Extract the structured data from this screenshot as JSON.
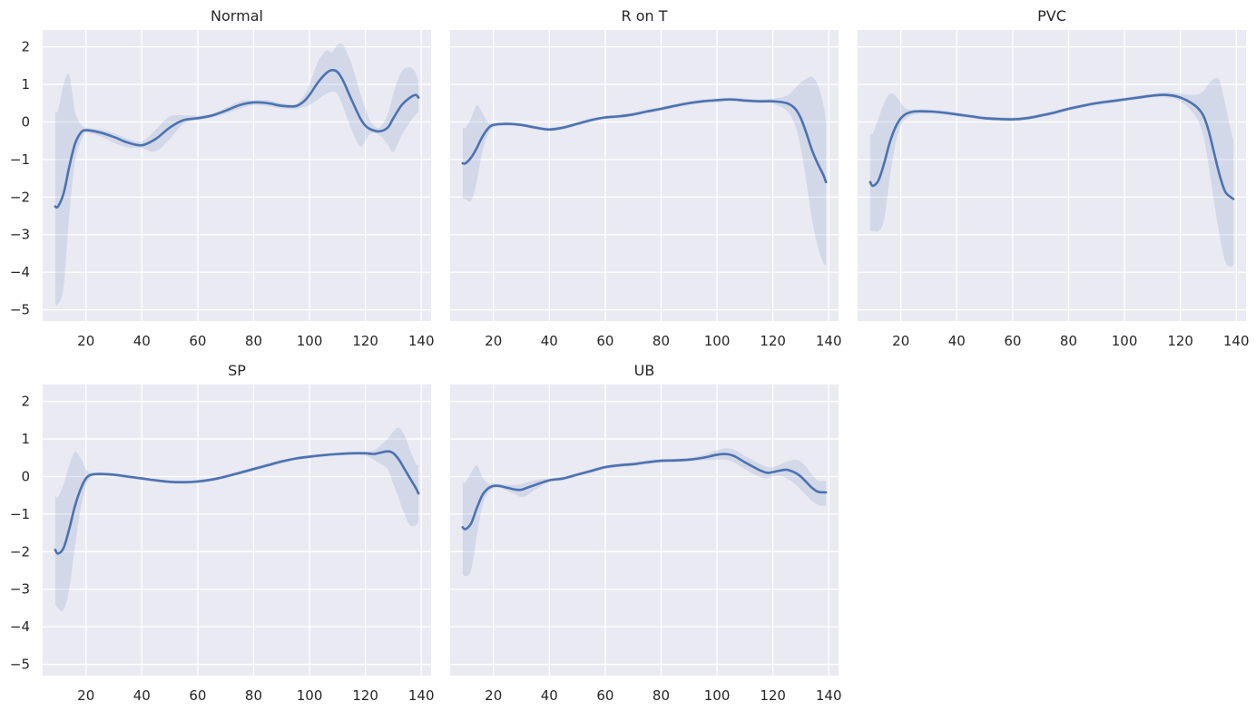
{
  "colors": {
    "panel_bg": "#eaeaf2",
    "grid": "#ffffff",
    "line": "#4c72b0",
    "band": "#4c72b0"
  },
  "chart_data": [
    {
      "type": "line",
      "title": "Normal",
      "x": [
        9,
        10,
        12,
        14,
        16,
        18,
        20,
        25,
        30,
        35,
        40,
        45,
        50,
        55,
        60,
        65,
        70,
        75,
        80,
        85,
        90,
        95,
        98,
        100,
        103,
        106,
        108,
        110,
        112,
        115,
        118,
        120,
        122,
        125,
        128,
        130,
        133,
        136,
        138,
        139
      ],
      "y": [
        -2.25,
        -2.25,
        -1.9,
        -1.2,
        -0.6,
        -0.3,
        -0.22,
        -0.28,
        -0.4,
        -0.55,
        -0.62,
        -0.45,
        -0.15,
        0.05,
        0.1,
        0.17,
        0.3,
        0.45,
        0.52,
        0.5,
        0.43,
        0.42,
        0.55,
        0.72,
        1.05,
        1.3,
        1.38,
        1.33,
        1.1,
        0.6,
        0.12,
        -0.1,
        -0.2,
        -0.25,
        -0.15,
        0.1,
        0.45,
        0.65,
        0.72,
        0.65
      ],
      "lower": [
        -4.85,
        -4.85,
        -4.4,
        -2.5,
        -1.1,
        -0.55,
        -0.3,
        -0.38,
        -0.55,
        -0.68,
        -0.7,
        -0.78,
        -0.45,
        -0.05,
        0.05,
        0.12,
        0.22,
        0.35,
        0.45,
        0.42,
        0.36,
        0.34,
        0.4,
        0.45,
        0.6,
        0.75,
        0.8,
        0.75,
        0.4,
        -0.2,
        -0.65,
        -0.5,
        -0.3,
        -0.35,
        -0.6,
        -0.8,
        -0.35,
        0.0,
        0.2,
        0.25
      ],
      "upper": [
        0.3,
        0.3,
        1.0,
        1.25,
        0.3,
        -0.05,
        -0.15,
        -0.2,
        -0.3,
        -0.45,
        -0.52,
        -0.2,
        0.15,
        0.18,
        0.17,
        0.22,
        0.38,
        0.55,
        0.58,
        0.58,
        0.5,
        0.48,
        0.7,
        1.0,
        1.6,
        1.9,
        1.85,
        2.05,
        2.05,
        1.55,
        0.8,
        0.35,
        0.0,
        -0.15,
        0.2,
        0.75,
        1.35,
        1.45,
        1.3,
        1.05
      ],
      "xlim": [
        4.5,
        143.5
      ],
      "ylim": [
        -5.3,
        2.45
      ],
      "xticks": [
        20,
        40,
        60,
        80,
        100,
        120,
        140
      ],
      "yticks": [
        2,
        1,
        0,
        -1,
        -2,
        -3,
        -4,
        -5
      ],
      "ytick_labels": [
        "2",
        "1",
        "0",
        "−1",
        "−2",
        "−3",
        "−4",
        "−5"
      ],
      "show_yticks": true
    },
    {
      "type": "line",
      "title": "R on T",
      "x": [
        9,
        10,
        12,
        14,
        16,
        18,
        20,
        25,
        30,
        35,
        40,
        45,
        50,
        55,
        60,
        65,
        70,
        75,
        80,
        85,
        90,
        95,
        100,
        105,
        110,
        115,
        120,
        125,
        128,
        130,
        132,
        134,
        136,
        138,
        139
      ],
      "y": [
        -1.1,
        -1.1,
        -0.95,
        -0.7,
        -0.4,
        -0.18,
        -0.08,
        -0.05,
        -0.08,
        -0.15,
        -0.2,
        -0.15,
        -0.05,
        0.05,
        0.12,
        0.15,
        0.2,
        0.28,
        0.35,
        0.43,
        0.5,
        0.55,
        0.58,
        0.6,
        0.57,
        0.55,
        0.55,
        0.5,
        0.35,
        0.1,
        -0.3,
        -0.75,
        -1.1,
        -1.4,
        -1.6
      ],
      "lower": [
        -2.05,
        -2.05,
        -2.1,
        -1.6,
        -0.8,
        -0.35,
        -0.15,
        -0.1,
        -0.12,
        -0.2,
        -0.25,
        -0.2,
        -0.1,
        0.0,
        0.08,
        0.1,
        0.15,
        0.23,
        0.3,
        0.38,
        0.45,
        0.5,
        0.52,
        0.55,
        0.52,
        0.5,
        0.48,
        0.3,
        -0.1,
        -0.7,
        -1.6,
        -2.6,
        -3.3,
        -3.75,
        -3.8
      ],
      "upper": [
        -0.15,
        -0.15,
        0.1,
        0.45,
        0.25,
        0.0,
        -0.02,
        0.0,
        -0.03,
        -0.1,
        -0.15,
        -0.1,
        0.0,
        0.1,
        0.16,
        0.2,
        0.25,
        0.33,
        0.4,
        0.48,
        0.55,
        0.6,
        0.63,
        0.65,
        0.62,
        0.6,
        0.62,
        0.7,
        0.9,
        1.05,
        1.15,
        1.2,
        1.0,
        0.5,
        0.0
      ],
      "xlim": [
        4.5,
        143.5
      ],
      "ylim": [
        -5.3,
        2.45
      ],
      "xticks": [
        20,
        40,
        60,
        80,
        100,
        120,
        140
      ],
      "yticks": [
        2,
        1,
        0,
        -1,
        -2,
        -3,
        -4,
        -5
      ],
      "ytick_labels": [
        "2",
        "1",
        "0",
        "−1",
        "−2",
        "−3",
        "−4",
        "−5"
      ],
      "show_yticks": false
    },
    {
      "type": "line",
      "title": "PVC",
      "x": [
        9,
        10,
        12,
        14,
        16,
        18,
        20,
        22,
        25,
        30,
        35,
        40,
        45,
        50,
        55,
        60,
        65,
        70,
        75,
        80,
        85,
        90,
        95,
        100,
        105,
        110,
        115,
        120,
        125,
        128,
        130,
        132,
        134,
        136,
        138,
        139
      ],
      "y": [
        -1.6,
        -1.7,
        -1.55,
        -1.1,
        -0.55,
        -0.15,
        0.1,
        0.22,
        0.28,
        0.28,
        0.25,
        0.2,
        0.15,
        0.1,
        0.08,
        0.07,
        0.1,
        0.17,
        0.25,
        0.35,
        0.43,
        0.5,
        0.55,
        0.6,
        0.65,
        0.7,
        0.72,
        0.65,
        0.45,
        0.2,
        -0.2,
        -0.8,
        -1.4,
        -1.85,
        -2.0,
        -2.05
      ],
      "lower": [
        -2.9,
        -2.9,
        -2.9,
        -2.6,
        -1.5,
        -0.6,
        -0.1,
        0.1,
        0.2,
        0.22,
        0.2,
        0.15,
        0.1,
        0.05,
        0.03,
        0.02,
        0.05,
        0.12,
        0.2,
        0.3,
        0.38,
        0.45,
        0.5,
        0.55,
        0.6,
        0.65,
        0.65,
        0.55,
        0.2,
        -0.3,
        -1.1,
        -2.1,
        -3.0,
        -3.7,
        -3.85,
        -3.8
      ],
      "upper": [
        -0.3,
        -0.3,
        0.1,
        0.5,
        0.75,
        0.7,
        0.5,
        0.35,
        0.33,
        0.33,
        0.3,
        0.25,
        0.2,
        0.15,
        0.13,
        0.12,
        0.15,
        0.22,
        0.3,
        0.4,
        0.48,
        0.55,
        0.6,
        0.65,
        0.7,
        0.75,
        0.78,
        0.75,
        0.72,
        0.8,
        1.0,
        1.15,
        1.1,
        0.5,
        -0.2,
        -0.5
      ],
      "xlim": [
        4.5,
        143.5
      ],
      "ylim": [
        -5.3,
        2.45
      ],
      "xticks": [
        20,
        40,
        60,
        80,
        100,
        120,
        140
      ],
      "yticks": [
        2,
        1,
        0,
        -1,
        -2,
        -3,
        -4,
        -5
      ],
      "ytick_labels": [
        "2",
        "1",
        "0",
        "−1",
        "−2",
        "−3",
        "−4",
        "−5"
      ],
      "show_yticks": false
    },
    {
      "type": "line",
      "title": "SP",
      "x": [
        9,
        10,
        12,
        14,
        16,
        18,
        20,
        22,
        25,
        30,
        35,
        40,
        45,
        50,
        55,
        60,
        65,
        70,
        75,
        80,
        85,
        90,
        95,
        100,
        105,
        110,
        115,
        120,
        123,
        125,
        128,
        130,
        132,
        134,
        136,
        138,
        139
      ],
      "y": [
        -1.95,
        -2.05,
        -1.9,
        -1.4,
        -0.8,
        -0.35,
        -0.05,
        0.05,
        0.07,
        0.05,
        0.0,
        -0.05,
        -0.1,
        -0.14,
        -0.15,
        -0.13,
        -0.08,
        0.0,
        0.1,
        0.2,
        0.3,
        0.4,
        0.48,
        0.53,
        0.57,
        0.6,
        0.62,
        0.62,
        0.6,
        0.63,
        0.67,
        0.62,
        0.45,
        0.2,
        -0.05,
        -0.3,
        -0.45
      ],
      "lower": [
        -3.4,
        -3.5,
        -3.55,
        -3.0,
        -1.9,
        -0.9,
        -0.25,
        -0.02,
        0.02,
        0.0,
        -0.05,
        -0.1,
        -0.15,
        -0.18,
        -0.2,
        -0.18,
        -0.13,
        -0.05,
        0.05,
        0.15,
        0.25,
        0.35,
        0.43,
        0.48,
        0.52,
        0.55,
        0.57,
        0.55,
        0.45,
        0.35,
        0.2,
        -0.2,
        -0.6,
        -1.0,
        -1.3,
        -1.3,
        -1.2
      ],
      "upper": [
        -0.5,
        -0.55,
        -0.2,
        0.3,
        0.65,
        0.5,
        0.2,
        0.1,
        0.1,
        0.08,
        0.03,
        -0.02,
        -0.07,
        -0.1,
        -0.11,
        -0.09,
        -0.04,
        0.05,
        0.15,
        0.25,
        0.35,
        0.45,
        0.52,
        0.57,
        0.6,
        0.63,
        0.65,
        0.66,
        0.7,
        0.8,
        1.0,
        1.2,
        1.3,
        1.1,
        0.7,
        0.35,
        0.3
      ],
      "xlim": [
        4.5,
        143.5
      ],
      "ylim": [
        -5.3,
        2.45
      ],
      "xticks": [
        20,
        40,
        60,
        80,
        100,
        120,
        140
      ],
      "yticks": [
        2,
        1,
        0,
        -1,
        -2,
        -3,
        -4,
        -5
      ],
      "ytick_labels": [
        "2",
        "1",
        "0",
        "−1",
        "−2",
        "−3",
        "−4",
        "−5"
      ],
      "show_yticks": true
    },
    {
      "type": "line",
      "title": "UB",
      "x": [
        9,
        10,
        12,
        14,
        16,
        18,
        20,
        22,
        25,
        28,
        30,
        32,
        35,
        40,
        45,
        50,
        55,
        60,
        65,
        70,
        75,
        80,
        85,
        90,
        95,
        100,
        103,
        106,
        110,
        115,
        118,
        120,
        122,
        125,
        128,
        130,
        132,
        134,
        136,
        138,
        139
      ],
      "y": [
        -1.35,
        -1.4,
        -1.25,
        -0.85,
        -0.5,
        -0.32,
        -0.25,
        -0.25,
        -0.3,
        -0.35,
        -0.35,
        -0.3,
        -0.22,
        -0.1,
        -0.05,
        0.05,
        0.15,
        0.25,
        0.3,
        0.33,
        0.38,
        0.42,
        0.43,
        0.45,
        0.5,
        0.58,
        0.6,
        0.55,
        0.38,
        0.18,
        0.1,
        0.12,
        0.15,
        0.18,
        0.1,
        0.0,
        -0.15,
        -0.3,
        -0.4,
        -0.42,
        -0.42
      ],
      "lower": [
        -2.6,
        -2.65,
        -2.5,
        -1.6,
        -0.8,
        -0.45,
        -0.32,
        -0.3,
        -0.38,
        -0.48,
        -0.55,
        -0.5,
        -0.35,
        -0.15,
        -0.1,
        0.0,
        0.1,
        0.2,
        0.25,
        0.28,
        0.33,
        0.37,
        0.38,
        0.4,
        0.43,
        0.45,
        0.45,
        0.38,
        0.2,
        0.0,
        -0.05,
        0.0,
        0.02,
        -0.05,
        -0.2,
        -0.35,
        -0.5,
        -0.65,
        -0.75,
        -0.78,
        -0.78
      ],
      "upper": [
        -0.15,
        -0.15,
        0.1,
        0.3,
        0.0,
        -0.18,
        -0.18,
        -0.2,
        -0.22,
        -0.22,
        -0.2,
        -0.15,
        -0.1,
        -0.05,
        0.0,
        0.1,
        0.2,
        0.3,
        0.35,
        0.38,
        0.43,
        0.47,
        0.48,
        0.5,
        0.58,
        0.7,
        0.75,
        0.72,
        0.55,
        0.35,
        0.25,
        0.25,
        0.3,
        0.4,
        0.45,
        0.4,
        0.25,
        0.05,
        -0.1,
        -0.12,
        -0.12
      ],
      "xlim": [
        4.5,
        143.5
      ],
      "ylim": [
        -5.3,
        2.45
      ],
      "xticks": [
        20,
        40,
        60,
        80,
        100,
        120,
        140
      ],
      "yticks": [
        2,
        1,
        0,
        -1,
        -2,
        -3,
        -4,
        -5
      ],
      "ytick_labels": [
        "2",
        "1",
        "0",
        "−1",
        "−2",
        "−3",
        "−4",
        "−5"
      ],
      "show_yticks": false
    }
  ]
}
